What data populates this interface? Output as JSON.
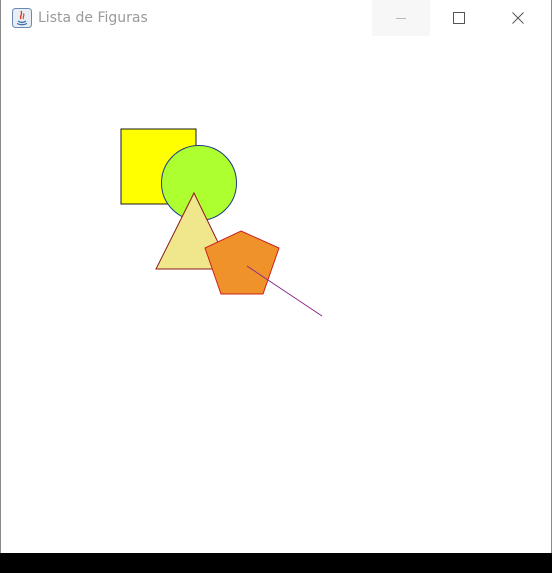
{
  "window": {
    "title": "Lista de Figuras",
    "icon": "java-app-icon",
    "controls": {
      "minimize": "minimize-icon",
      "maximize": "maximize-icon",
      "close": "close-icon"
    }
  },
  "figures": [
    {
      "type": "square",
      "fill": "#ffff00",
      "stroke": "#1a1a1a"
    },
    {
      "type": "circle",
      "fill": "#adff2f",
      "stroke": "#1a3a8a"
    },
    {
      "type": "triangle",
      "fill": "#f0e68c",
      "stroke": "#8b1a1a"
    },
    {
      "type": "pentagon",
      "fill": "#f0922a",
      "stroke": "#cc2020"
    },
    {
      "type": "line",
      "fill": "none",
      "stroke": "#8b2a8b"
    }
  ]
}
